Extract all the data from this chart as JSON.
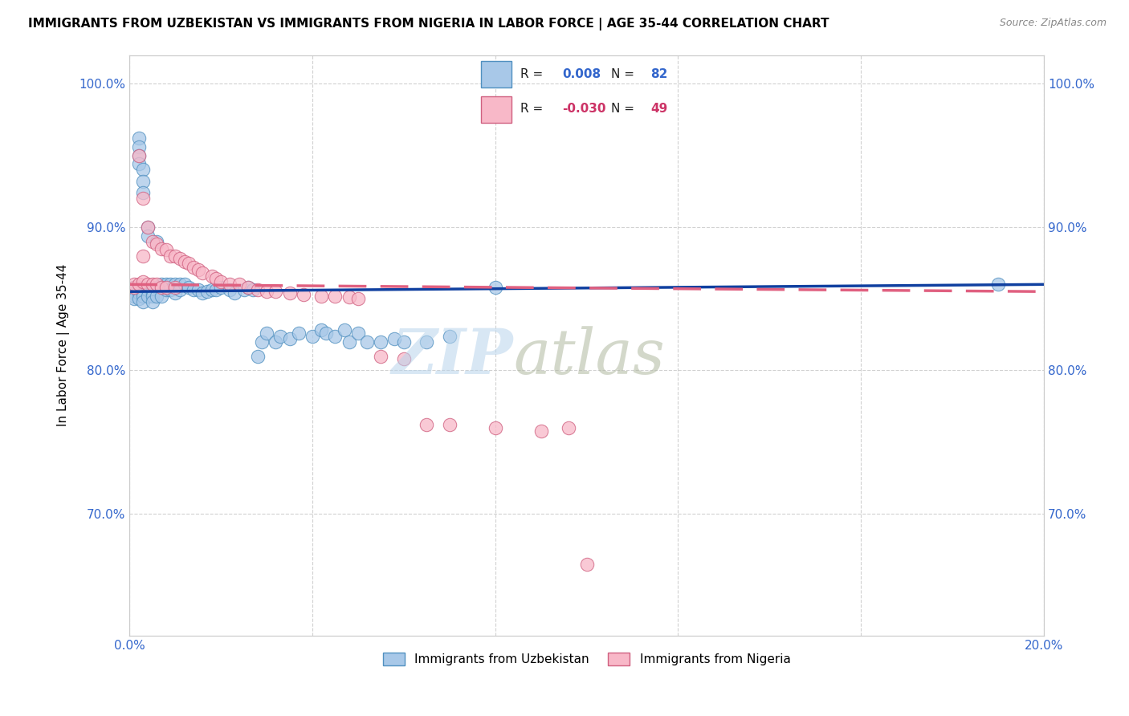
{
  "title": "IMMIGRANTS FROM UZBEKISTAN VS IMMIGRANTS FROM NIGERIA IN LABOR FORCE | AGE 35-44 CORRELATION CHART",
  "source": "Source: ZipAtlas.com",
  "ylabel": "In Labor Force | Age 35-44",
  "xlim": [
    0.0,
    0.2
  ],
  "ylim": [
    0.615,
    1.02
  ],
  "uzbekistan_color": "#a8c8e8",
  "uzbekistan_edge": "#5090c0",
  "nigeria_color": "#f8b8c8",
  "nigeria_edge": "#d06080",
  "trend_uzbekistan_color": "#1040a0",
  "trend_nigeria_color": "#e06080",
  "background_color": "#ffffff",
  "grid_color": "#cccccc",
  "uzbekistan_R": "0.008",
  "uzbekistan_N": "82",
  "nigeria_R": "-0.030",
  "nigeria_N": "49",
  "uzbekistan_trend_x0": 0.0,
  "uzbekistan_trend_y0": 0.855,
  "uzbekistan_trend_x1": 0.2,
  "uzbekistan_trend_y1": 0.86,
  "nigeria_trend_x0": 0.0,
  "nigeria_trend_y0": 0.86,
  "nigeria_trend_x1": 0.2,
  "nigeria_trend_y1": 0.855,
  "uzbekistan_x": [
    0.001,
    0.001,
    0.001,
    0.001,
    0.001,
    0.001,
    0.002,
    0.002,
    0.002,
    0.002,
    0.002,
    0.002,
    0.002,
    0.002,
    0.003,
    0.003,
    0.003,
    0.003,
    0.003,
    0.003,
    0.003,
    0.003,
    0.004,
    0.004,
    0.004,
    0.004,
    0.004,
    0.005,
    0.005,
    0.005,
    0.005,
    0.005,
    0.006,
    0.006,
    0.006,
    0.007,
    0.007,
    0.007,
    0.008,
    0.008,
    0.009,
    0.009,
    0.01,
    0.01,
    0.011,
    0.011,
    0.012,
    0.013,
    0.014,
    0.015,
    0.016,
    0.017,
    0.018,
    0.019,
    0.02,
    0.022,
    0.023,
    0.025,
    0.026,
    0.027,
    0.028,
    0.029,
    0.03,
    0.032,
    0.033,
    0.035,
    0.037,
    0.04,
    0.042,
    0.043,
    0.045,
    0.047,
    0.048,
    0.05,
    0.052,
    0.055,
    0.058,
    0.06,
    0.065,
    0.07,
    0.08,
    0.19
  ],
  "uzbekistan_y": [
    0.858,
    0.858,
    0.856,
    0.854,
    0.852,
    0.85,
    0.962,
    0.956,
    0.95,
    0.944,
    0.858,
    0.856,
    0.854,
    0.85,
    0.94,
    0.932,
    0.924,
    0.858,
    0.856,
    0.854,
    0.852,
    0.848,
    0.9,
    0.894,
    0.858,
    0.856,
    0.852,
    0.858,
    0.856,
    0.854,
    0.852,
    0.848,
    0.89,
    0.858,
    0.852,
    0.86,
    0.858,
    0.852,
    0.86,
    0.856,
    0.86,
    0.856,
    0.86,
    0.854,
    0.86,
    0.856,
    0.86,
    0.858,
    0.856,
    0.856,
    0.854,
    0.855,
    0.856,
    0.856,
    0.858,
    0.856,
    0.854,
    0.856,
    0.858,
    0.856,
    0.81,
    0.82,
    0.826,
    0.82,
    0.824,
    0.822,
    0.826,
    0.824,
    0.828,
    0.826,
    0.824,
    0.828,
    0.82,
    0.826,
    0.82,
    0.82,
    0.822,
    0.82,
    0.82,
    0.824,
    0.858,
    0.86
  ],
  "nigeria_x": [
    0.001,
    0.001,
    0.002,
    0.002,
    0.003,
    0.003,
    0.003,
    0.004,
    0.004,
    0.005,
    0.005,
    0.006,
    0.006,
    0.007,
    0.007,
    0.008,
    0.008,
    0.009,
    0.01,
    0.01,
    0.011,
    0.012,
    0.013,
    0.014,
    0.015,
    0.016,
    0.018,
    0.019,
    0.02,
    0.022,
    0.024,
    0.026,
    0.028,
    0.03,
    0.032,
    0.035,
    0.038,
    0.042,
    0.045,
    0.048,
    0.05,
    0.055,
    0.06,
    0.065,
    0.07,
    0.08,
    0.09,
    0.096,
    0.1
  ],
  "nigeria_y": [
    0.858,
    0.86,
    0.95,
    0.86,
    0.92,
    0.88,
    0.862,
    0.9,
    0.86,
    0.89,
    0.86,
    0.888,
    0.86,
    0.885,
    0.858,
    0.884,
    0.858,
    0.88,
    0.88,
    0.858,
    0.878,
    0.876,
    0.875,
    0.872,
    0.87,
    0.868,
    0.866,
    0.864,
    0.862,
    0.86,
    0.86,
    0.858,
    0.856,
    0.855,
    0.855,
    0.854,
    0.853,
    0.852,
    0.852,
    0.851,
    0.85,
    0.81,
    0.808,
    0.762,
    0.762,
    0.76,
    0.758,
    0.76,
    0.665
  ]
}
